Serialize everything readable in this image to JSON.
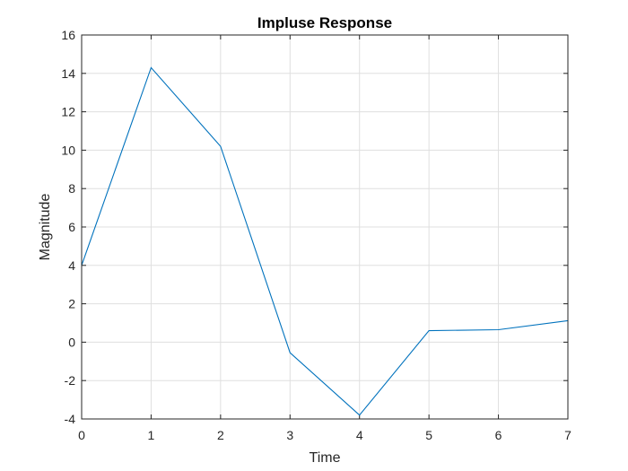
{
  "chart_data": {
    "type": "line",
    "title": "Impluse Response",
    "xlabel": "Time",
    "ylabel": "Magnitude",
    "xlim": [
      0,
      7
    ],
    "ylim": [
      -4,
      16
    ],
    "xticks": [
      0,
      1,
      2,
      3,
      4,
      5,
      6,
      7
    ],
    "yticks": [
      -4,
      -2,
      0,
      2,
      4,
      6,
      8,
      10,
      12,
      14,
      16
    ],
    "grid": true,
    "series": [
      {
        "color": "#0072bd",
        "x": [
          0,
          1,
          2,
          3,
          4,
          5,
          6,
          7
        ],
        "y": [
          4.0,
          14.3,
          10.2,
          -0.55,
          -3.8,
          0.6,
          0.65,
          1.12
        ]
      }
    ]
  }
}
